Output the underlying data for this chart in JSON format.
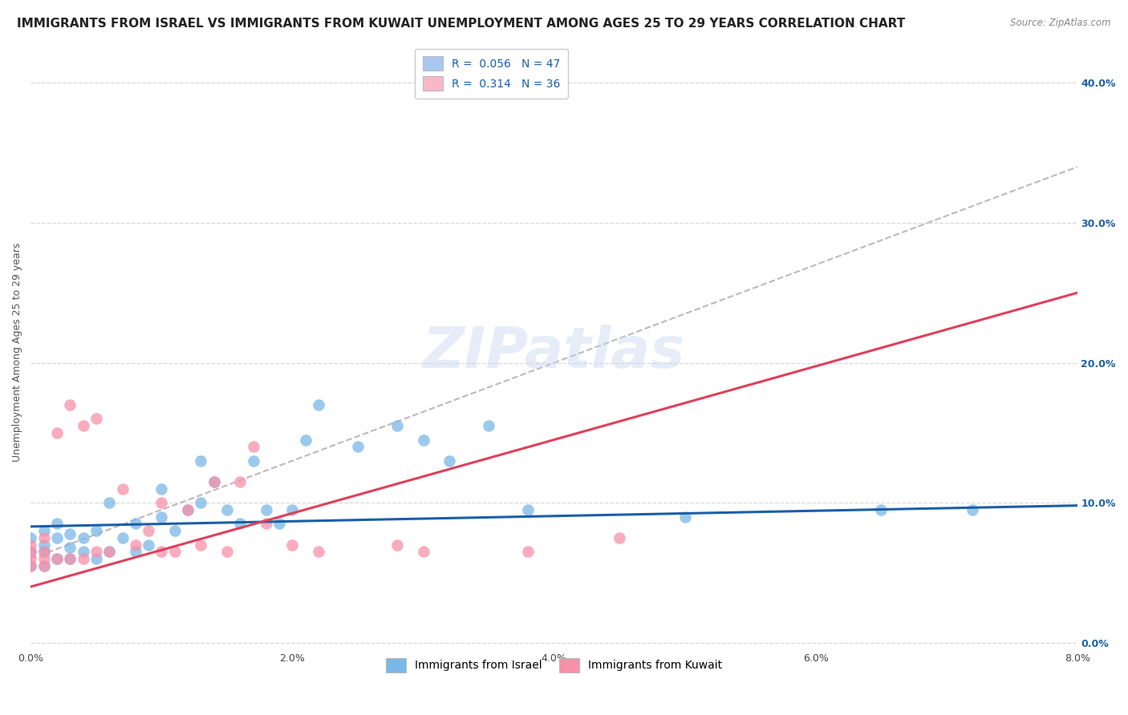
{
  "title": "IMMIGRANTS FROM ISRAEL VS IMMIGRANTS FROM KUWAIT UNEMPLOYMENT AMONG AGES 25 TO 29 YEARS CORRELATION CHART",
  "source": "Source: ZipAtlas.com",
  "ylabel": "Unemployment Among Ages 25 to 29 years",
  "legend_entries": [
    {
      "label": "Immigrants from Israel",
      "R": "0.056",
      "N": "47",
      "color": "#a8c8f0"
    },
    {
      "label": "Immigrants from Kuwait",
      "R": "0.314",
      "N": "36",
      "color": "#f8b8c8"
    }
  ],
  "israel_scatter_x": [
    0.0,
    0.0,
    0.0,
    0.001,
    0.001,
    0.001,
    0.001,
    0.002,
    0.002,
    0.002,
    0.003,
    0.003,
    0.003,
    0.004,
    0.004,
    0.005,
    0.005,
    0.006,
    0.006,
    0.007,
    0.008,
    0.008,
    0.009,
    0.01,
    0.01,
    0.011,
    0.012,
    0.013,
    0.013,
    0.014,
    0.015,
    0.016,
    0.017,
    0.018,
    0.019,
    0.02,
    0.021,
    0.022,
    0.025,
    0.028,
    0.03,
    0.032,
    0.035,
    0.038,
    0.05,
    0.065,
    0.072
  ],
  "israel_scatter_y": [
    0.055,
    0.065,
    0.075,
    0.055,
    0.065,
    0.07,
    0.08,
    0.06,
    0.075,
    0.085,
    0.06,
    0.068,
    0.078,
    0.065,
    0.075,
    0.06,
    0.08,
    0.065,
    0.1,
    0.075,
    0.065,
    0.085,
    0.07,
    0.09,
    0.11,
    0.08,
    0.095,
    0.1,
    0.13,
    0.115,
    0.095,
    0.085,
    0.13,
    0.095,
    0.085,
    0.095,
    0.145,
    0.17,
    0.14,
    0.155,
    0.145,
    0.13,
    0.155,
    0.095,
    0.09,
    0.095,
    0.095
  ],
  "kuwait_scatter_x": [
    0.0,
    0.0,
    0.0,
    0.0,
    0.001,
    0.001,
    0.001,
    0.001,
    0.002,
    0.002,
    0.003,
    0.003,
    0.004,
    0.004,
    0.005,
    0.005,
    0.006,
    0.007,
    0.008,
    0.009,
    0.01,
    0.01,
    0.011,
    0.012,
    0.013,
    0.014,
    0.015,
    0.016,
    0.017,
    0.018,
    0.02,
    0.022,
    0.028,
    0.03,
    0.038,
    0.045
  ],
  "kuwait_scatter_y": [
    0.055,
    0.06,
    0.065,
    0.07,
    0.055,
    0.06,
    0.065,
    0.075,
    0.06,
    0.15,
    0.06,
    0.17,
    0.06,
    0.155,
    0.065,
    0.16,
    0.065,
    0.11,
    0.07,
    0.08,
    0.065,
    0.1,
    0.065,
    0.095,
    0.07,
    0.115,
    0.065,
    0.115,
    0.14,
    0.085,
    0.07,
    0.065,
    0.07,
    0.065,
    0.065,
    0.075
  ],
  "israel_color": "#7ab8e8",
  "kuwait_color": "#f890a8",
  "israel_line_color": "#1a5fa8",
  "kuwait_line_color": "#e0405a",
  "dashed_line_color": "#c0b8b8",
  "background_color": "#ffffff",
  "grid_color": "#d8d8d8",
  "xlim": [
    0.0,
    0.08
  ],
  "ylim": [
    -0.005,
    0.42
  ],
  "yticks": [
    0.0,
    0.1,
    0.2,
    0.3,
    0.4
  ],
  "ytick_labels_right": [
    "0.0%",
    "10.0%",
    "20.0%",
    "30.0%",
    "40.0%"
  ],
  "xticks": [
    0.0,
    0.02,
    0.04,
    0.06,
    0.08
  ],
  "xtick_labels": [
    "0.0%",
    "2.0%",
    "4.0%",
    "6.0%",
    "8.0%"
  ],
  "watermark": "ZIPatlas",
  "israel_trend": [
    0.083,
    0.098
  ],
  "kuwait_trend": [
    0.04,
    0.25
  ],
  "dashed_trend": [
    0.06,
    0.34
  ],
  "title_fontsize": 11,
  "axis_fontsize": 9,
  "tick_fontsize": 9,
  "legend_fontsize": 10
}
